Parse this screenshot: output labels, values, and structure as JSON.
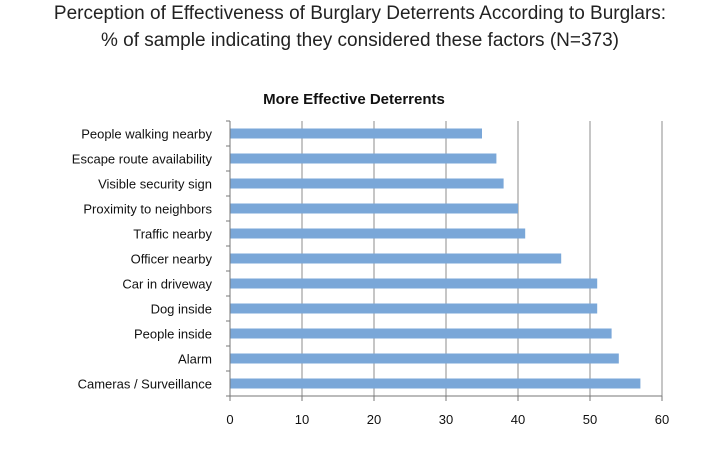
{
  "header": {
    "title_line_1": "Perception of Effectiveness of Burglary Deterrents According to Burglars:",
    "title_line_2": "% of sample indicating they considered these factors (N=373)"
  },
  "chart_data": {
    "type": "bar",
    "orientation": "horizontal",
    "title": "More Effective Deterrents",
    "categories": [
      "People walking nearby",
      "Escape route availability",
      "Visible security sign",
      "Proximity to neighbors",
      "Traffic nearby",
      "Officer nearby",
      "Car in driveway",
      "Dog inside",
      "People inside",
      "Alarm",
      "Cameras / Surveillance"
    ],
    "values": [
      35,
      37,
      38,
      40,
      41,
      46,
      51,
      51,
      53,
      54,
      57
    ],
    "xlim": [
      0,
      60
    ],
    "xticks": [
      0,
      10,
      20,
      30,
      40,
      50,
      60
    ],
    "grid": true,
    "bar_color": "#7aa7d8",
    "grid_color": "#8c8c8c"
  }
}
